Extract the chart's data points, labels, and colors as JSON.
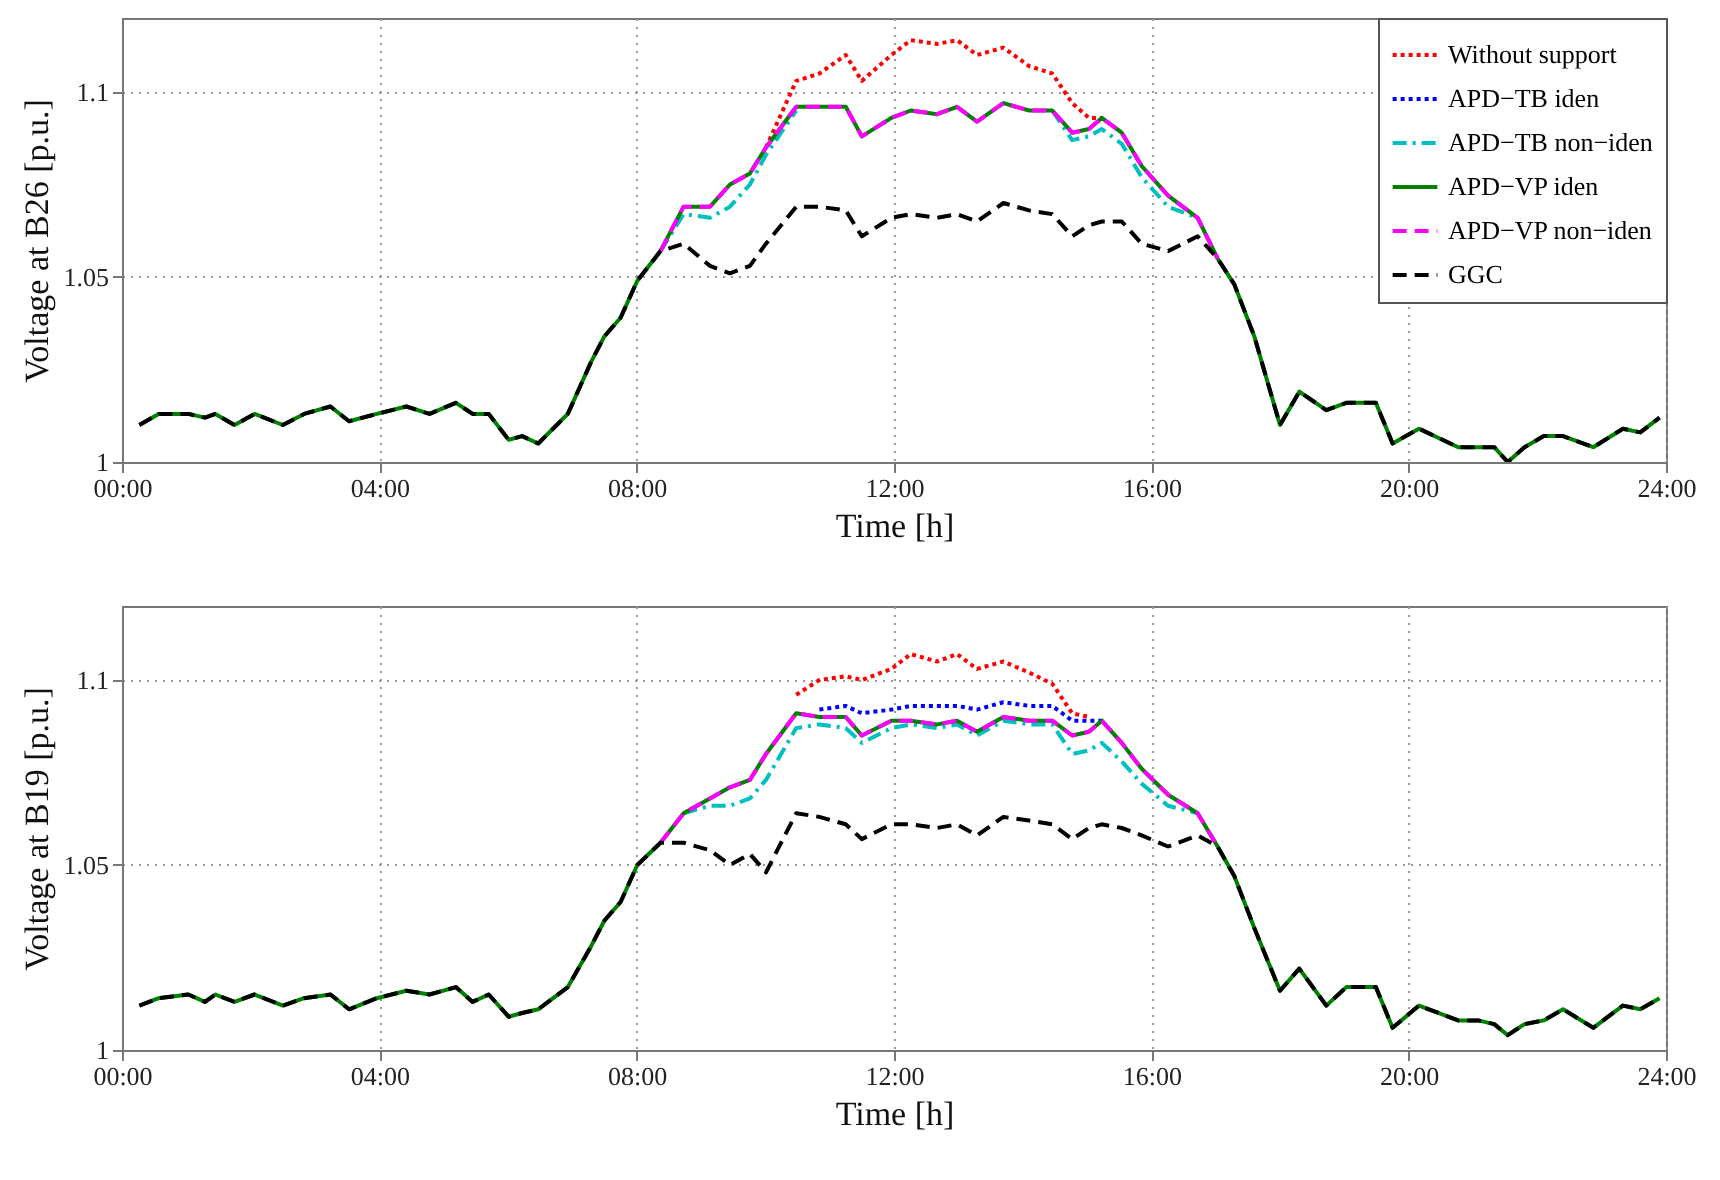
{
  "chart_data": [
    {
      "type": "line",
      "xlabel": "Time [h]",
      "ylabel": "Voltage at B26 [p.u.]",
      "xlim": [
        0,
        24
      ],
      "xticks": [
        {
          "value": 0,
          "label": "00:00"
        },
        {
          "value": 4,
          "label": "04:00"
        },
        {
          "value": 8,
          "label": "08:00"
        },
        {
          "value": 12,
          "label": "12:00"
        },
        {
          "value": 16,
          "label": "16:00"
        },
        {
          "value": 20,
          "label": "20:00"
        },
        {
          "value": 24,
          "label": "24:00"
        }
      ],
      "ylim": [
        1,
        1.12
      ],
      "yticks": [
        1,
        1.05,
        1.1
      ],
      "grid": true,
      "legend": "top right",
      "x": [
        0.27,
        0.57,
        1.03,
        1.29,
        1.45,
        1.75,
        2.06,
        2.5,
        2.83,
        3.24,
        3.53,
        3.96,
        4.42,
        4.78,
        5.19,
        5.45,
        5.7,
        6.01,
        6.22,
        6.47,
        6.93,
        7.29,
        7.5,
        7.75,
        8.01,
        8.37,
        8.73,
        9.14,
        9.45,
        9.76,
        10.01,
        10.48,
        10.84,
        11.25,
        11.5,
        11.96,
        12.26,
        12.67,
        12.98,
        13.29,
        13.7,
        14.1,
        14.46,
        14.77,
        15.03,
        15.23,
        15.54,
        15.85,
        16.26,
        16.72,
        17.03,
        17.29,
        17.6,
        18.0,
        18.3,
        18.72,
        19.03,
        19.49,
        19.75,
        20.16,
        20.77,
        21.08,
        21.33,
        21.54,
        21.8,
        22.1,
        22.4,
        22.87,
        23.33,
        23.6,
        23.9
      ],
      "series": [
        {
          "name": "Without support",
          "color": "#ff0000",
          "line_style": "dotted",
          "values": [
            null,
            null,
            null,
            null,
            null,
            null,
            null,
            null,
            null,
            null,
            null,
            null,
            null,
            null,
            null,
            null,
            null,
            null,
            null,
            null,
            null,
            null,
            null,
            null,
            null,
            null,
            null,
            null,
            null,
            null,
            1.085,
            1.103,
            1.105,
            1.11,
            1.103,
            1.11,
            1.114,
            1.113,
            1.114,
            1.11,
            1.112,
            1.107,
            1.105,
            1.097,
            1.093,
            1.093,
            null,
            null,
            null,
            null,
            null,
            null,
            null,
            null,
            null,
            null,
            null,
            null,
            null,
            null,
            null,
            null,
            null,
            null,
            null,
            null,
            null,
            null,
            null,
            null,
            null
          ]
        },
        {
          "name": "APD−TB iden",
          "color": "#0000ff",
          "line_style": "dotted",
          "values": [
            null,
            null,
            null,
            null,
            null,
            null,
            null,
            null,
            null,
            null,
            null,
            null,
            null,
            null,
            null,
            null,
            null,
            null,
            null,
            null,
            null,
            null,
            null,
            null,
            null,
            null,
            null,
            null,
            null,
            null,
            null,
            null,
            null,
            null,
            null,
            null,
            null,
            null,
            null,
            null,
            null,
            null,
            null,
            null,
            null,
            null,
            null,
            null,
            null,
            null,
            null,
            null,
            null,
            null,
            null,
            null,
            null,
            null,
            null,
            null,
            null,
            null,
            null,
            null,
            null,
            null,
            null,
            null,
            null,
            null,
            null
          ]
        },
        {
          "name": "APD−TB non−iden",
          "color": "#00bfbf",
          "line_style": "dashdot",
          "values": [
            null,
            null,
            null,
            null,
            null,
            null,
            null,
            null,
            null,
            null,
            null,
            null,
            null,
            null,
            null,
            null,
            null,
            null,
            null,
            null,
            null,
            null,
            null,
            null,
            null,
            1.057,
            1.067,
            1.066,
            1.069,
            1.075,
            1.083,
            1.095,
            null,
            null,
            null,
            null,
            null,
            null,
            null,
            null,
            null,
            null,
            1.095,
            1.087,
            1.088,
            1.09,
            1.086,
            1.077,
            1.069,
            1.066,
            null,
            null,
            null,
            null,
            null,
            null,
            null,
            null,
            null,
            null,
            null,
            null,
            null,
            null,
            null,
            null,
            null,
            null,
            null,
            null,
            null
          ]
        },
        {
          "name": "APD−VP iden",
          "color": "#008000",
          "line_style": "solid",
          "values": [
            1.01,
            1.013,
            1.013,
            1.012,
            1.013,
            1.01,
            1.013,
            1.01,
            1.013,
            1.015,
            1.011,
            1.013,
            1.015,
            1.013,
            1.016,
            1.013,
            1.013,
            1.006,
            1.007,
            1.005,
            1.013,
            1.027,
            1.034,
            1.039,
            1.049,
            1.057,
            1.069,
            1.069,
            1.075,
            1.078,
            1.085,
            1.096,
            1.096,
            1.096,
            1.088,
            1.093,
            1.095,
            1.094,
            1.096,
            1.092,
            1.097,
            1.095,
            1.095,
            1.089,
            1.09,
            1.093,
            1.089,
            1.08,
            1.072,
            1.066,
            1.055,
            1.048,
            1.034,
            1.01,
            1.019,
            1.014,
            1.016,
            1.016,
            1.005,
            1.009,
            1.004,
            1.004,
            1.004,
            1.0,
            1.004,
            1.007,
            1.007,
            1.004,
            1.009,
            1.008,
            1.012
          ]
        },
        {
          "name": "APD−VP non−iden",
          "color": "#ff00ff",
          "line_style": "dashed",
          "values": [
            null,
            null,
            null,
            null,
            null,
            null,
            null,
            null,
            null,
            null,
            null,
            null,
            null,
            null,
            null,
            null,
            null,
            null,
            null,
            null,
            null,
            null,
            null,
            null,
            null,
            1.057,
            1.069,
            1.069,
            1.075,
            1.078,
            1.085,
            1.096,
            1.096,
            1.096,
            1.088,
            1.093,
            1.095,
            1.094,
            1.096,
            1.092,
            1.097,
            1.095,
            1.095,
            1.089,
            1.09,
            1.093,
            1.089,
            1.08,
            1.072,
            1.066,
            1.055,
            null,
            null,
            null,
            null,
            null,
            null,
            null,
            null,
            null,
            null,
            null,
            null,
            null,
            null,
            null,
            null,
            null,
            null,
            null,
            null
          ]
        },
        {
          "name": "GGC",
          "color": "#000000",
          "line_style": "dashed",
          "values": [
            1.01,
            1.013,
            1.013,
            1.012,
            1.013,
            1.01,
            1.013,
            1.01,
            1.013,
            1.015,
            1.011,
            1.013,
            1.015,
            1.013,
            1.016,
            1.013,
            1.013,
            1.006,
            1.007,
            1.005,
            1.013,
            1.027,
            1.034,
            1.039,
            1.049,
            1.057,
            1.059,
            1.053,
            1.051,
            1.053,
            1.059,
            1.069,
            1.069,
            1.068,
            1.061,
            1.066,
            1.067,
            1.066,
            1.067,
            1.065,
            1.07,
            1.068,
            1.067,
            1.061,
            1.064,
            1.065,
            1.065,
            1.059,
            1.057,
            1.061,
            1.055,
            1.048,
            1.034,
            1.01,
            1.019,
            1.014,
            1.016,
            1.016,
            1.005,
            1.009,
            1.004,
            1.004,
            1.004,
            1.0,
            1.004,
            1.007,
            1.007,
            1.004,
            1.009,
            1.008,
            1.012
          ]
        }
      ]
    },
    {
      "type": "line",
      "xlabel": "Time [h]",
      "ylabel": "Voltage at B19 [p.u.]",
      "xlim": [
        0,
        24
      ],
      "xticks": [
        {
          "value": 0,
          "label": "00:00"
        },
        {
          "value": 4,
          "label": "04:00"
        },
        {
          "value": 8,
          "label": "08:00"
        },
        {
          "value": 12,
          "label": "12:00"
        },
        {
          "value": 16,
          "label": "16:00"
        },
        {
          "value": 20,
          "label": "20:00"
        },
        {
          "value": 24,
          "label": "24:00"
        }
      ],
      "ylim": [
        1,
        1.12
      ],
      "yticks": [
        1,
        1.05,
        1.1
      ],
      "grid": true,
      "x": [
        0.27,
        0.57,
        1.03,
        1.29,
        1.45,
        1.75,
        2.06,
        2.5,
        2.83,
        3.24,
        3.53,
        3.96,
        4.42,
        4.78,
        5.19,
        5.45,
        5.7,
        6.01,
        6.22,
        6.47,
        6.93,
        7.29,
        7.5,
        7.75,
        8.01,
        8.37,
        8.73,
        9.14,
        9.45,
        9.76,
        10.01,
        10.48,
        10.84,
        11.25,
        11.5,
        11.96,
        12.26,
        12.67,
        12.98,
        13.29,
        13.7,
        14.1,
        14.46,
        14.77,
        15.03,
        15.23,
        15.54,
        15.85,
        16.26,
        16.72,
        17.03,
        17.29,
        17.6,
        18.0,
        18.3,
        18.72,
        19.03,
        19.49,
        19.75,
        20.16,
        20.77,
        21.08,
        21.33,
        21.54,
        21.8,
        22.1,
        22.4,
        22.87,
        23.33,
        23.6,
        23.9
      ],
      "series": [
        {
          "color": "#ff0000",
          "line_style": "dotted",
          "values": [
            null,
            null,
            null,
            null,
            null,
            null,
            null,
            null,
            null,
            null,
            null,
            null,
            null,
            null,
            null,
            null,
            null,
            null,
            null,
            null,
            null,
            null,
            null,
            null,
            null,
            null,
            null,
            null,
            null,
            null,
            null,
            1.096,
            1.1,
            1.101,
            1.1,
            1.103,
            1.107,
            1.105,
            1.107,
            1.103,
            1.105,
            1.102,
            1.099,
            1.091,
            1.09,
            null,
            null,
            null,
            null,
            null,
            null,
            null,
            null,
            null,
            null,
            null,
            null,
            null,
            null,
            null,
            null,
            null,
            null,
            null,
            null,
            null,
            null,
            null,
            null,
            null,
            null
          ]
        },
        {
          "color": "#0000ff",
          "line_style": "dotted",
          "values": [
            null,
            null,
            null,
            null,
            null,
            null,
            null,
            null,
            null,
            null,
            null,
            null,
            null,
            null,
            null,
            null,
            null,
            null,
            null,
            null,
            null,
            null,
            null,
            null,
            null,
            null,
            null,
            null,
            null,
            null,
            null,
            null,
            1.092,
            1.093,
            1.091,
            1.092,
            1.093,
            1.093,
            1.093,
            1.092,
            1.094,
            1.093,
            1.093,
            1.089,
            1.089,
            1.089,
            null,
            null,
            null,
            null,
            null,
            null,
            null,
            null,
            null,
            null,
            null,
            null,
            null,
            null,
            null,
            null,
            null,
            null,
            null,
            null,
            null,
            null,
            null,
            null,
            null
          ]
        },
        {
          "color": "#00bfbf",
          "line_style": "dashdot",
          "values": [
            null,
            null,
            null,
            null,
            null,
            null,
            null,
            null,
            null,
            null,
            null,
            null,
            null,
            null,
            null,
            null,
            null,
            null,
            null,
            null,
            null,
            null,
            null,
            null,
            null,
            null,
            1.064,
            1.066,
            1.066,
            1.068,
            1.073,
            1.087,
            1.088,
            1.087,
            1.083,
            1.087,
            1.088,
            1.087,
            1.088,
            1.085,
            1.089,
            1.088,
            1.088,
            1.08,
            1.081,
            1.083,
            1.078,
            1.072,
            1.066,
            1.064,
            null,
            null,
            null,
            null,
            null,
            null,
            null,
            null,
            null,
            null,
            null,
            null,
            null,
            null,
            null,
            null,
            null,
            null,
            null,
            null,
            null
          ]
        },
        {
          "color": "#008000",
          "line_style": "solid",
          "values": [
            1.012,
            1.014,
            1.015,
            1.013,
            1.015,
            1.013,
            1.015,
            1.012,
            1.014,
            1.015,
            1.011,
            1.014,
            1.016,
            1.015,
            1.017,
            1.013,
            1.015,
            1.009,
            1.01,
            1.011,
            1.017,
            1.028,
            1.035,
            1.04,
            1.05,
            1.056,
            1.064,
            1.068,
            1.071,
            1.073,
            1.08,
            1.091,
            1.09,
            1.09,
            1.085,
            1.089,
            1.089,
            1.088,
            1.089,
            1.086,
            1.09,
            1.089,
            1.089,
            1.085,
            1.086,
            1.089,
            1.083,
            1.076,
            1.069,
            1.064,
            1.055,
            1.047,
            1.033,
            1.016,
            1.022,
            1.012,
            1.017,
            1.017,
            1.006,
            1.012,
            1.008,
            1.008,
            1.007,
            1.004,
            1.007,
            1.008,
            1.011,
            1.006,
            1.012,
            1.011,
            1.014
          ]
        },
        {
          "color": "#ff00ff",
          "line_style": "dashed",
          "values": [
            null,
            null,
            null,
            null,
            null,
            null,
            null,
            null,
            null,
            null,
            null,
            null,
            null,
            null,
            null,
            null,
            null,
            null,
            null,
            null,
            null,
            null,
            null,
            null,
            null,
            1.056,
            1.064,
            1.068,
            1.071,
            1.073,
            1.08,
            1.091,
            1.09,
            1.09,
            1.085,
            1.089,
            1.089,
            1.088,
            1.089,
            1.086,
            1.09,
            1.089,
            1.089,
            1.085,
            1.086,
            1.089,
            1.083,
            1.076,
            1.069,
            1.064,
            1.055,
            null,
            null,
            null,
            null,
            null,
            null,
            null,
            null,
            null,
            null,
            null,
            null,
            null,
            null,
            null,
            null,
            null,
            null,
            null,
            null
          ]
        },
        {
          "color": "#000000",
          "line_style": "dashed",
          "values": [
            1.012,
            1.014,
            1.015,
            1.013,
            1.015,
            1.013,
            1.015,
            1.012,
            1.014,
            1.015,
            1.011,
            1.014,
            1.016,
            1.015,
            1.017,
            1.013,
            1.015,
            1.009,
            1.01,
            1.011,
            1.017,
            1.028,
            1.035,
            1.04,
            1.05,
            1.056,
            1.056,
            1.054,
            1.05,
            1.053,
            1.048,
            1.064,
            1.063,
            1.061,
            1.057,
            1.061,
            1.061,
            1.06,
            1.061,
            1.058,
            1.063,
            1.062,
            1.061,
            1.057,
            1.06,
            1.061,
            1.06,
            1.058,
            1.055,
            1.058,
            1.055,
            1.047,
            1.033,
            1.016,
            1.022,
            1.012,
            1.017,
            1.017,
            1.006,
            1.012,
            1.008,
            1.008,
            1.007,
            1.004,
            1.007,
            1.008,
            1.011,
            1.006,
            1.012,
            1.011,
            1.014
          ]
        }
      ]
    }
  ]
}
